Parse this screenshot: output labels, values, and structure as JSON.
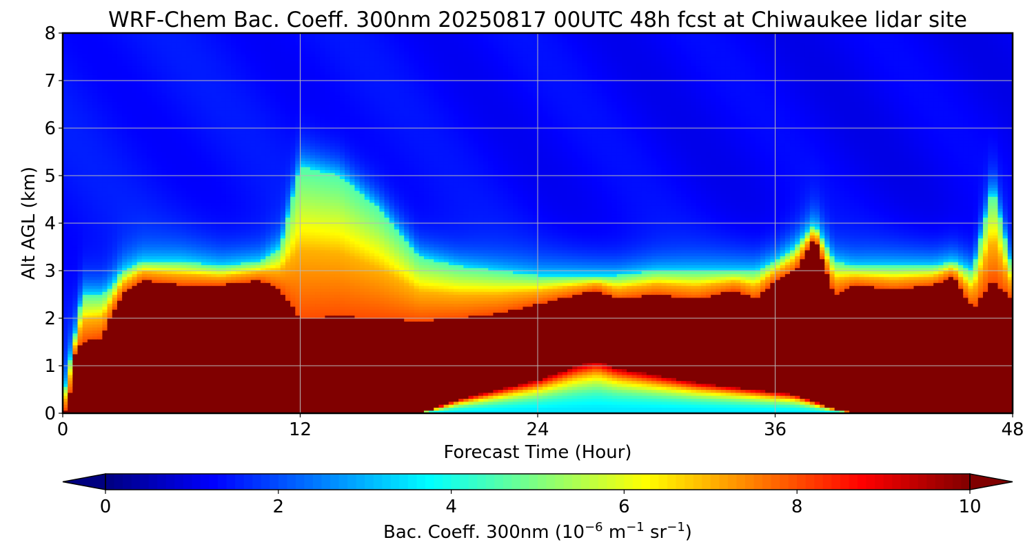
{
  "chart_data": {
    "type": "heatmap",
    "title": "WRF-Chem Bac. Coeff. 300nm  20250817 00UTC 48h fcst at Chiwaukee lidar site",
    "xlabel": "Forecast Time (Hour)",
    "ylabel": "Alt AGL (km)",
    "xlim": [
      0,
      48
    ],
    "ylim": [
      0,
      8
    ],
    "xticks": [
      0,
      12,
      24,
      36,
      48
    ],
    "yticks": [
      0,
      1,
      2,
      3,
      4,
      5,
      6,
      7,
      8
    ],
    "grid": true,
    "colormap": "jet",
    "colorbar": {
      "orientation": "horizontal",
      "range": [
        0,
        10
      ],
      "ticks": [
        0,
        2,
        4,
        6,
        8,
        10
      ],
      "extend": "both",
      "label_main": "Bac. Coeff. 300nm  (10",
      "label_exp1": "−6",
      "label_mid": " m",
      "label_exp2": "−1",
      "label_mid2": " sr",
      "label_exp3": "−1",
      "label_end": ")"
    },
    "x_hours": [
      0,
      0.3,
      0.6,
      1,
      2,
      2.5,
      3,
      4,
      6,
      8,
      10,
      11,
      12,
      14,
      16,
      18,
      20,
      22,
      24,
      26,
      27,
      28,
      30,
      32,
      34,
      35,
      36,
      37,
      38,
      39,
      40,
      42,
      44,
      45,
      46,
      47,
      48
    ],
    "layer_top_km": [
      0,
      0.2,
      1.2,
      1.5,
      1.6,
      2.1,
      2.5,
      2.8,
      2.7,
      2.7,
      2.8,
      2.6,
      2.0,
      2.05,
      2.0,
      1.95,
      2.0,
      2.1,
      2.3,
      2.5,
      2.6,
      2.4,
      2.5,
      2.4,
      2.6,
      2.4,
      2.8,
      3.0,
      3.7,
      2.5,
      2.7,
      2.6,
      2.7,
      2.9,
      2.2,
      2.8,
      2.4
    ],
    "aerosol_top_km": [
      0.3,
      1.0,
      1.6,
      2.5,
      2.5,
      2.7,
      3.0,
      3.2,
      3.2,
      3.1,
      3.2,
      3.5,
      5.2,
      5.0,
      4.3,
      3.3,
      3.1,
      3.0,
      2.9,
      2.9,
      2.9,
      2.9,
      3.0,
      3.0,
      3.0,
      3.0,
      3.2,
      3.5,
      4.0,
      3.2,
      3.1,
      3.1,
      3.1,
      3.2,
      3.0,
      4.8,
      3.0
    ],
    "low_pocket_top_km": [
      0,
      0,
      0,
      0,
      0,
      0,
      0,
      0,
      0,
      0,
      0,
      0,
      0,
      0,
      0,
      0,
      0.3,
      0.5,
      0.7,
      1.0,
      1.1,
      0.95,
      0.8,
      0.65,
      0.55,
      0.5,
      0.45,
      0.4,
      0.25,
      0.1,
      0,
      0,
      0,
      0,
      0,
      0,
      0
    ],
    "low_pocket_min_value": 3.5,
    "upper_background_value": 1.4,
    "aerosol_plume_value": 5.8
  }
}
